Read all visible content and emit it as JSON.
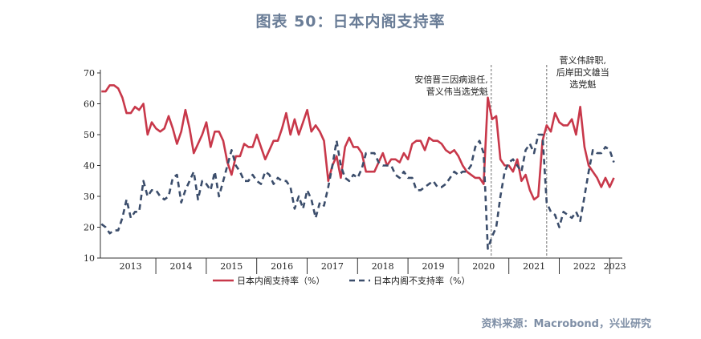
{
  "figure_title": "图表 50：日本内阁支持率",
  "source": "资料来源：Macrobond，兴业研究",
  "colors": {
    "approve": "#c8384a",
    "disapprove": "#3b4d6b",
    "axis": "#333333",
    "marker": "#888888"
  },
  "chart_data": {
    "type": "line",
    "title": "",
    "xlabel": "",
    "ylabel": "",
    "ylim": [
      10,
      70
    ],
    "xlim": [
      2012.9,
      2023.25
    ],
    "yticks": [
      10,
      20,
      30,
      40,
      50,
      60,
      70
    ],
    "xticks": [
      {
        "label": "2013",
        "value": 2013.5
      },
      {
        "label": "2014",
        "value": 2014.5
      },
      {
        "label": "2015",
        "value": 2015.5
      },
      {
        "label": "2016",
        "value": 2016.5
      },
      {
        "label": "2017",
        "value": 2017.5
      },
      {
        "label": "2018",
        "value": 2018.5
      },
      {
        "label": "2019",
        "value": 2019.5
      },
      {
        "label": "2020",
        "value": 2020.5
      },
      {
        "label": "2021",
        "value": 2021.5
      },
      {
        "label": "2022",
        "value": 2022.5
      },
      {
        "label": "2023",
        "value": 2023.1
      }
    ],
    "year_boundaries": [
      2014,
      2015,
      2016,
      2017,
      2018,
      2019,
      2020,
      2021,
      2022,
      2023
    ],
    "grid": false,
    "legend_position": "bottom",
    "events": [
      {
        "x": 2020.65,
        "lines": [
          "安倍晋三因病退任,",
          "菅义伟当选党魁"
        ]
      },
      {
        "x": 2021.75,
        "lines": [
          "菅义伟辞职,",
          "后岸田文雄当",
          "选党魁"
        ]
      }
    ],
    "series": [
      {
        "name": "日本内阁支持率（%）",
        "style": "solid",
        "x_start": 2012.92,
        "x_step": 0.0833,
        "values": [
          64,
          64,
          66,
          66,
          65,
          62,
          57,
          57,
          59,
          58,
          60,
          50,
          54,
          52,
          51,
          52,
          56,
          52,
          47,
          51,
          58,
          52,
          44,
          47,
          50,
          54,
          46,
          51,
          51,
          48,
          41,
          37,
          43,
          43,
          47,
          46,
          46,
          50,
          46,
          42,
          45,
          48,
          48,
          52,
          57,
          50,
          55,
          50,
          54,
          58,
          51,
          53,
          51,
          48,
          35,
          40,
          43,
          36,
          46,
          49,
          46,
          46,
          44,
          38,
          38,
          38,
          41,
          44,
          40,
          42,
          42,
          41,
          44,
          42,
          47,
          48,
          48,
          45,
          49,
          48,
          48,
          47,
          45,
          44,
          45,
          43,
          40,
          38,
          37,
          36,
          36,
          34,
          62,
          55,
          56,
          42,
          40,
          40,
          38,
          42,
          35,
          37,
          32,
          29,
          30,
          48,
          53,
          51,
          57,
          54,
          53,
          53,
          55,
          50,
          59,
          46,
          40,
          38,
          36,
          33,
          36,
          33,
          36
        ]
      },
      {
        "name": "日本内阁不支持率（%）",
        "style": "dashed",
        "x_start": 2012.92,
        "x_step": 0.0833,
        "values": [
          21,
          20,
          18,
          19,
          19,
          23,
          29,
          23,
          25,
          25,
          35,
          30,
          32,
          32,
          30,
          29,
          30,
          36,
          37,
          28,
          32,
          35,
          38,
          29,
          35,
          34,
          32,
          38,
          30,
          35,
          40,
          45,
          40,
          38,
          35,
          35,
          37,
          35,
          34,
          38,
          37,
          34,
          36,
          35,
          35,
          33,
          26,
          30,
          26,
          32,
          29,
          23,
          28,
          27,
          33,
          40,
          48,
          40,
          36,
          35,
          37,
          36,
          39,
          44,
          44,
          44,
          41,
          40,
          40,
          40,
          37,
          36,
          38,
          36,
          36,
          32,
          32,
          33,
          34,
          35,
          33,
          33,
          34,
          36,
          38,
          37,
          38,
          38,
          40,
          46,
          48,
          44,
          13,
          17,
          20,
          30,
          38,
          41,
          42,
          40,
          38,
          45,
          47,
          44,
          50,
          50,
          28,
          25,
          24,
          20,
          25,
          24,
          23,
          25,
          22,
          30,
          38,
          45,
          44,
          44,
          46,
          45,
          41
        ]
      }
    ]
  }
}
